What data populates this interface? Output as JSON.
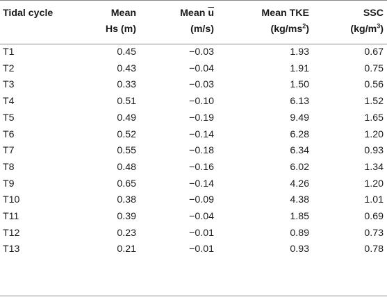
{
  "table": {
    "headers": [
      {
        "lines": [
          "Tidal cycle"
        ]
      },
      {
        "lines": [
          "Mean",
          "Hs (m)"
        ]
      },
      {
        "lines": [
          "Mean u̅",
          "(m/s)"
        ],
        "prefix": "Mean ",
        "symbol": "u",
        "unit": "(m/s)"
      },
      {
        "lines": [
          "Mean TKE",
          "(kg/ms2)"
        ],
        "line1": "Mean TKE",
        "unit_base": "(kg/ms",
        "unit_exp": "2",
        "unit_close": ")"
      },
      {
        "lines": [
          "SSC",
          "(kg/m3)"
        ],
        "line1": "SSC",
        "unit_base": "(kg/m",
        "unit_exp": "3",
        "unit_close": ")"
      }
    ],
    "rows": [
      [
        "T1",
        "0.45",
        "−0.03",
        "1.93",
        "0.67"
      ],
      [
        "T2",
        "0.43",
        "−0.04",
        "1.91",
        "0.75"
      ],
      [
        "T3",
        "0.33",
        "−0.03",
        "1.50",
        "0.56"
      ],
      [
        "T4",
        "0.51",
        "−0.10",
        "6.13",
        "1.52"
      ],
      [
        "T5",
        "0.49",
        "−0.19",
        "9.49",
        "1.65"
      ],
      [
        "T6",
        "0.52",
        "−0.14",
        "6.28",
        "1.20"
      ],
      [
        "T7",
        "0.55",
        "−0.18",
        "6.34",
        "0.93"
      ],
      [
        "T8",
        "0.48",
        "−0.16",
        "6.02",
        "1.34"
      ],
      [
        "T9",
        "0.65",
        "−0.14",
        "4.26",
        "1.20"
      ],
      [
        "T10",
        "0.38",
        "−0.09",
        "4.38",
        "1.01"
      ],
      [
        "T11",
        "0.39",
        "−0.04",
        "1.85",
        "0.69"
      ],
      [
        "T12",
        "0.23",
        "−0.01",
        "0.89",
        "0.73"
      ],
      [
        "T13",
        "0.21",
        "−0.01",
        "0.93",
        "0.78"
      ]
    ]
  }
}
